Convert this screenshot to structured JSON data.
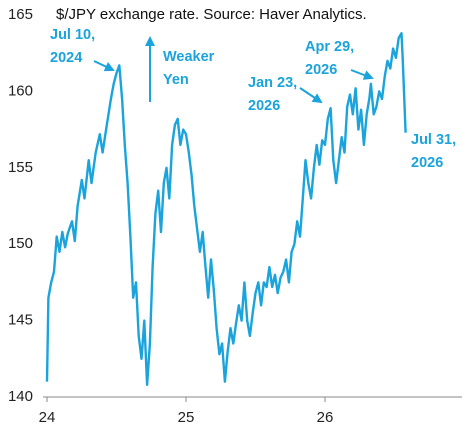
{
  "chart_data": {
    "type": "line",
    "title": "$/JPY exchange rate. Source: Haver Analytics.",
    "color": "#1ba3dc",
    "xlim": [
      24,
      27
    ],
    "xticks": [
      24,
      25,
      26
    ],
    "ylim": [
      140,
      165
    ],
    "yticks": [
      140,
      145,
      150,
      155,
      160,
      165
    ],
    "grid": false,
    "x": [
      24.0,
      24.01,
      24.03,
      24.05,
      24.07,
      24.09,
      24.11,
      24.13,
      24.15,
      24.18,
      24.2,
      24.22,
      24.25,
      24.27,
      24.3,
      24.32,
      24.35,
      24.38,
      24.4,
      24.43,
      24.46,
      24.48,
      24.5,
      24.52,
      24.54,
      24.56,
      24.58,
      24.6,
      24.62,
      24.64,
      24.66,
      24.68,
      24.7,
      24.72,
      24.74,
      24.76,
      24.78,
      24.8,
      24.82,
      24.84,
      24.86,
      24.88,
      24.9,
      24.92,
      24.94,
      24.96,
      24.98,
      25.0,
      25.02,
      25.04,
      25.06,
      25.08,
      25.1,
      25.12,
      25.14,
      25.16,
      25.18,
      25.2,
      25.22,
      25.24,
      25.26,
      25.28,
      25.3,
      25.32,
      25.34,
      25.36,
      25.38,
      25.4,
      25.42,
      25.44,
      25.46,
      25.48,
      25.5,
      25.52,
      25.54,
      25.56,
      25.58,
      25.6,
      25.62,
      25.64,
      25.66,
      25.68,
      25.7,
      25.72,
      25.74,
      25.76,
      25.78,
      25.8,
      25.82,
      25.84,
      25.86,
      25.88,
      25.9,
      25.92,
      25.94,
      25.96,
      25.98,
      26.0,
      26.02,
      26.04,
      26.06,
      26.08,
      26.1,
      26.12,
      26.14,
      26.16,
      26.18,
      26.2,
      26.22,
      26.24,
      26.26,
      26.28,
      26.3,
      26.32,
      26.33,
      26.35,
      26.37,
      26.39,
      26.41,
      26.43,
      26.45,
      26.47,
      26.49,
      26.51,
      26.53,
      26.55,
      26.56,
      26.58
    ],
    "values": [
      141.0,
      146.5,
      147.5,
      148.2,
      150.5,
      149.5,
      150.8,
      149.8,
      150.7,
      151.5,
      150.2,
      152.5,
      154.2,
      153.0,
      155.5,
      154.0,
      156.0,
      157.2,
      156.0,
      157.8,
      159.5,
      160.5,
      161.2,
      161.7,
      159.5,
      156.5,
      154.0,
      150.5,
      146.5,
      147.5,
      144.0,
      142.5,
      145.0,
      140.8,
      143.5,
      148.5,
      152.0,
      153.5,
      150.8,
      154.0,
      155.0,
      153.0,
      156.5,
      157.8,
      158.2,
      156.5,
      157.5,
      157.2,
      156.0,
      154.5,
      152.5,
      151.0,
      149.5,
      150.8,
      148.5,
      146.5,
      149.0,
      147.0,
      144.5,
      142.8,
      143.5,
      141.0,
      143.0,
      144.5,
      143.5,
      144.8,
      146.0,
      145.0,
      147.5,
      145.0,
      144.0,
      145.5,
      146.8,
      147.5,
      146.0,
      147.5,
      147.2,
      148.5,
      147.2,
      148.0,
      146.8,
      147.8,
      148.2,
      149.0,
      147.5,
      149.5,
      150.0,
      151.5,
      150.5,
      153.0,
      155.5,
      154.0,
      153.0,
      155.0,
      156.5,
      155.2,
      156.8,
      156.5,
      158.2,
      158.9,
      155.5,
      154.0,
      155.5,
      157.0,
      156.0,
      159.0,
      159.8,
      158.5,
      160.2,
      157.5,
      158.8,
      156.5,
      158.5,
      159.6,
      160.5,
      158.5,
      159.0,
      160.0,
      159.5,
      161.0,
      162.0,
      161.5,
      162.8,
      162.2,
      163.5,
      163.8,
      162.0,
      157.3
    ],
    "annotations": [
      {
        "lines": [
          "Jul 10,",
          "2024"
        ]
      },
      {
        "lines": [
          "Weaker",
          "Yen"
        ]
      },
      {
        "lines": [
          "Jan 23,",
          "2026"
        ]
      },
      {
        "lines": [
          "Apr 29,",
          "2026"
        ]
      },
      {
        "lines": [
          "Jul 31,",
          "2026"
        ]
      }
    ]
  }
}
